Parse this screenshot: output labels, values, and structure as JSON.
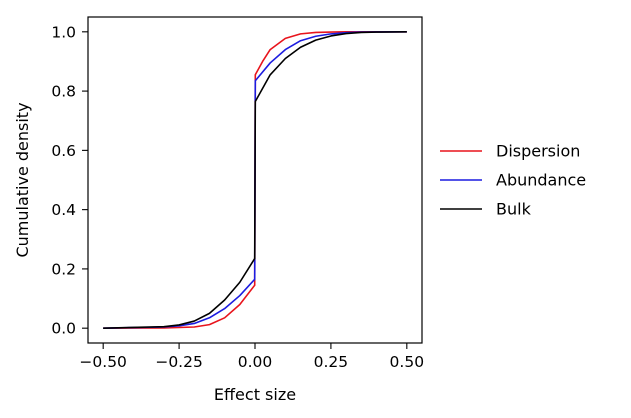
{
  "chart_data": {
    "type": "line",
    "title": "",
    "xlabel": "Effect size",
    "ylabel": "Cumulative density",
    "xlim": [
      -0.55,
      0.55
    ],
    "ylim": [
      -0.05,
      1.05
    ],
    "x_ticks": [
      "-0.50",
      "-0.25",
      "0.00",
      "0.25",
      "0.50"
    ],
    "y_ticks": [
      "0.0",
      "0.2",
      "0.4",
      "0.6",
      "0.8",
      "1.0"
    ],
    "grid": false,
    "legend_position": "center-right outside",
    "series": [
      {
        "name": "Dispersion",
        "color": "#e8141c",
        "x": [
          -0.5,
          -0.3,
          -0.2,
          -0.15,
          -0.1,
          -0.05,
          -0.001,
          0.001,
          0.025,
          0.05,
          0.1,
          0.15,
          0.2,
          0.25,
          0.3,
          0.5
        ],
        "y": [
          0.0,
          0.001,
          0.004,
          0.012,
          0.035,
          0.08,
          0.145,
          0.855,
          0.9,
          0.94,
          0.978,
          0.993,
          0.998,
          0.999,
          1.0,
          1.0
        ]
      },
      {
        "name": "Abundance",
        "color": "#1c1ce0",
        "x": [
          -0.5,
          -0.3,
          -0.25,
          -0.2,
          -0.15,
          -0.1,
          -0.05,
          -0.001,
          0.001,
          0.05,
          0.1,
          0.15,
          0.2,
          0.25,
          0.3,
          0.35,
          0.5
        ],
        "y": [
          0.0,
          0.004,
          0.008,
          0.016,
          0.035,
          0.066,
          0.11,
          0.165,
          0.835,
          0.895,
          0.94,
          0.97,
          0.985,
          0.993,
          0.997,
          0.999,
          1.0
        ]
      },
      {
        "name": "Bulk",
        "color": "#000000",
        "x": [
          -0.5,
          -0.3,
          -0.25,
          -0.2,
          -0.15,
          -0.1,
          -0.05,
          -0.001,
          0.001,
          0.05,
          0.1,
          0.15,
          0.2,
          0.25,
          0.3,
          0.35,
          0.4,
          0.5
        ],
        "y": [
          0.0,
          0.005,
          0.011,
          0.024,
          0.05,
          0.095,
          0.155,
          0.235,
          0.765,
          0.855,
          0.91,
          0.948,
          0.972,
          0.986,
          0.994,
          0.998,
          0.999,
          1.0
        ]
      }
    ]
  }
}
